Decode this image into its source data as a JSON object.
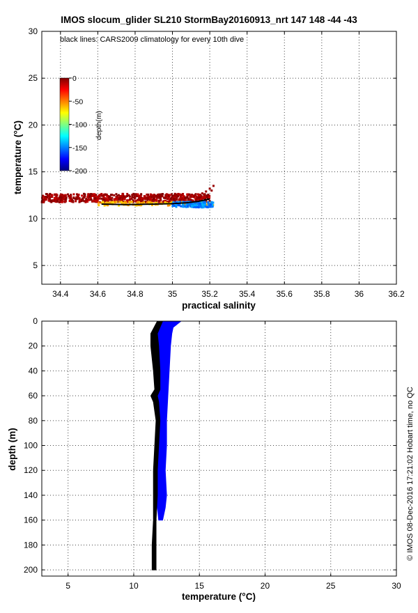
{
  "title": "IMOS slocum_glider SL210 StormBay20160913_nrt 147  148  -44  -43",
  "footer_note": "© IMOS 08-Dec-2016 17:21:02 Hobart time, no QC",
  "chart_data": [
    {
      "type": "scatter",
      "panel": "top",
      "annotation": "black lines: CARS2009 climatology for every 10th dive",
      "xlabel": "practical salinity",
      "ylabel": "temperature (°C)",
      "xlim": [
        34.3,
        36.2
      ],
      "ylim": [
        3,
        30
      ],
      "xticks": [
        34.4,
        34.6,
        34.8,
        35,
        35.2,
        35.4,
        35.6,
        35.8,
        36,
        36.2
      ],
      "xtick_labels": [
        "34.4",
        "34.6",
        "34.8",
        "35",
        "35.2",
        "35.4",
        "35.6",
        "35.8",
        "36",
        "36.2"
      ],
      "yticks": [
        5,
        10,
        15,
        20,
        25,
        30
      ],
      "ytick_labels": [
        "5",
        "10",
        "15",
        "20",
        "25",
        "30"
      ],
      "grid": true,
      "colorbar": {
        "label": "depth(m)",
        "ticks": [
          0,
          -50,
          -100,
          -150,
          -200
        ],
        "tick_labels": [
          "0",
          "-50",
          "-100",
          "-150",
          "-200"
        ],
        "colormap": [
          "#00007f",
          "#0000ff",
          "#0080ff",
          "#00ffff",
          "#80ff80",
          "#ffff00",
          "#ff8000",
          "#ff0000",
          "#7f0000"
        ]
      },
      "series": [
        {
          "color_by": "depth",
          "bands": [
            {
              "s_range": [
                34.3,
                35.2
              ],
              "t_center": 12.2,
              "t_spread": 0.45,
              "depth": -5
            },
            {
              "s_range": [
                34.6,
                35.22
              ],
              "t_center": 11.6,
              "t_spread": 0.2,
              "depth": -60
            },
            {
              "s_range": [
                35.0,
                35.22
              ],
              "t_center": 11.5,
              "t_spread": 0.3,
              "depth": -150
            }
          ]
        },
        {
          "color": "#000000",
          "points": [
            [
              34.62,
              11.55
            ],
            [
              34.75,
              11.5
            ],
            [
              34.9,
              11.55
            ],
            [
              35.0,
              11.6
            ],
            [
              35.08,
              11.7
            ],
            [
              35.14,
              11.85
            ],
            [
              35.2,
              12.1
            ]
          ]
        }
      ]
    },
    {
      "type": "line",
      "panel": "bottom",
      "xlabel": "temperature (°C)",
      "ylabel": "depth (m)",
      "xlim": [
        3,
        30
      ],
      "ylim": [
        205,
        0
      ],
      "xticks": [
        5,
        10,
        15,
        20,
        25,
        30
      ],
      "xtick_labels": [
        "5",
        "10",
        "15",
        "20",
        "25",
        "30"
      ],
      "yticks": [
        0,
        20,
        40,
        60,
        80,
        100,
        120,
        140,
        160,
        180,
        200
      ],
      "ytick_labels": [
        "0",
        "20",
        "40",
        "60",
        "80",
        "100",
        "120",
        "140",
        "160",
        "180",
        "200"
      ],
      "grid": true,
      "series": [
        {
          "color": "#0000ff",
          "profile": [
            [
              0,
              11.9,
              13.6
            ],
            [
              5,
              11.8,
              13.0
            ],
            [
              10,
              11.8,
              12.9
            ],
            [
              20,
              11.8,
              12.8
            ],
            [
              40,
              11.8,
              12.7
            ],
            [
              60,
              11.8,
              12.6
            ],
            [
              80,
              11.8,
              12.5
            ],
            [
              100,
              11.8,
              12.5
            ],
            [
              120,
              11.7,
              12.4
            ],
            [
              140,
              11.8,
              12.5
            ],
            [
              150,
              11.8,
              12.4
            ],
            [
              160,
              11.9,
              12.2
            ]
          ]
        },
        {
          "color": "#000000",
          "profile": [
            [
              0,
              11.8,
              12.2
            ],
            [
              10,
              11.3,
              11.8
            ],
            [
              20,
              11.3,
              11.9
            ],
            [
              40,
              11.5,
              12.0
            ],
            [
              55,
              11.6,
              12.0
            ],
            [
              60,
              11.3,
              11.8
            ],
            [
              65,
              11.5,
              11.9
            ],
            [
              80,
              11.7,
              12.0
            ],
            [
              100,
              11.6,
              11.9
            ],
            [
              120,
              11.5,
              11.8
            ],
            [
              140,
              11.5,
              11.8
            ],
            [
              160,
              11.5,
              11.7
            ],
            [
              180,
              11.4,
              11.7
            ],
            [
              200,
              11.4,
              11.7
            ]
          ]
        }
      ]
    }
  ]
}
